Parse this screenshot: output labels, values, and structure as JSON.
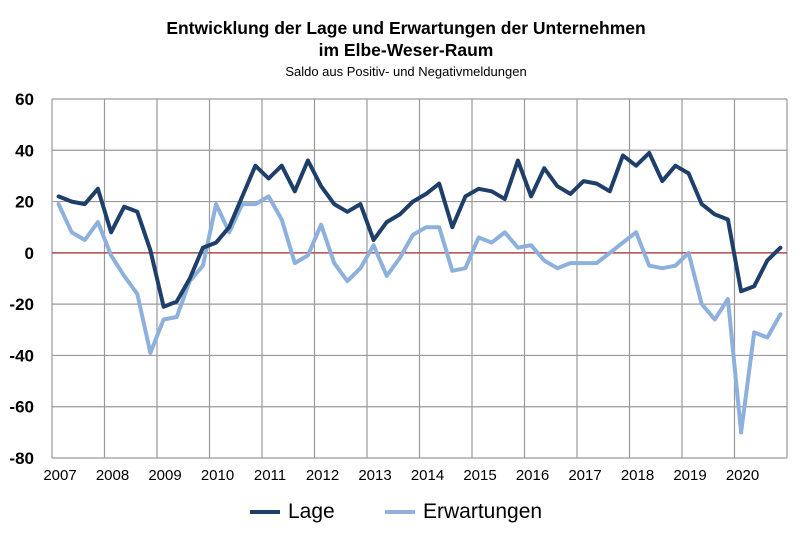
{
  "chart_data": {
    "type": "line",
    "title": "Entwicklung der Lage und Erwartungen der Unternehmen",
    "title_line2": "im Elbe-Weser-Raum",
    "subtitle": "Saldo aus Positiv- und Negativmeldungen",
    "xlabel": "",
    "ylabel": "",
    "ylim": [
      -80,
      60
    ],
    "yticks": [
      "60",
      "40",
      "20",
      "0",
      "-20",
      "-40",
      "-60",
      "-80"
    ],
    "ytick_values": [
      60,
      40,
      20,
      0,
      -20,
      -40,
      -60,
      -80
    ],
    "xtick_labels": [
      "2007",
      "2008",
      "2009",
      "2010",
      "2011",
      "2012",
      "2013",
      "2014",
      "2015",
      "2016",
      "2017",
      "2018",
      "2019",
      "2020"
    ],
    "x_frequency": "quarterly",
    "grid": true,
    "zero_line_color": "#b05050",
    "legend_position": "bottom",
    "series": [
      {
        "name": "Lage",
        "color": "#1f3f6b",
        "values": [
          22,
          20,
          19,
          25,
          8,
          18,
          16,
          1,
          -21,
          -19,
          -10,
          2,
          4,
          10,
          22,
          34,
          29,
          34,
          24,
          36,
          26,
          19,
          16,
          19,
          5,
          12,
          15,
          20,
          23,
          27,
          10,
          22,
          25,
          24,
          21,
          36,
          22,
          33,
          26,
          23,
          28,
          27,
          24,
          38,
          34,
          39,
          28,
          34,
          31,
          19,
          15,
          13,
          -15,
          -13,
          -3,
          2
        ]
      },
      {
        "name": "Erwartungen",
        "color": "#8db0dc",
        "values": [
          19,
          8,
          5,
          12,
          -1,
          -9,
          -16,
          -39,
          -26,
          -25,
          -11,
          -5,
          19,
          8,
          19,
          19,
          22,
          13,
          -4,
          -1,
          11,
          -4,
          -11,
          -6,
          3,
          -9,
          -2,
          7,
          10,
          10,
          -7,
          -6,
          6,
          4,
          8,
          2,
          3,
          -3,
          -6,
          -4,
          -4,
          -4,
          0,
          4,
          8,
          -5,
          -6,
          -5,
          0,
          -20,
          -26,
          -18,
          -70,
          -31,
          -33,
          -24
        ]
      }
    ]
  }
}
